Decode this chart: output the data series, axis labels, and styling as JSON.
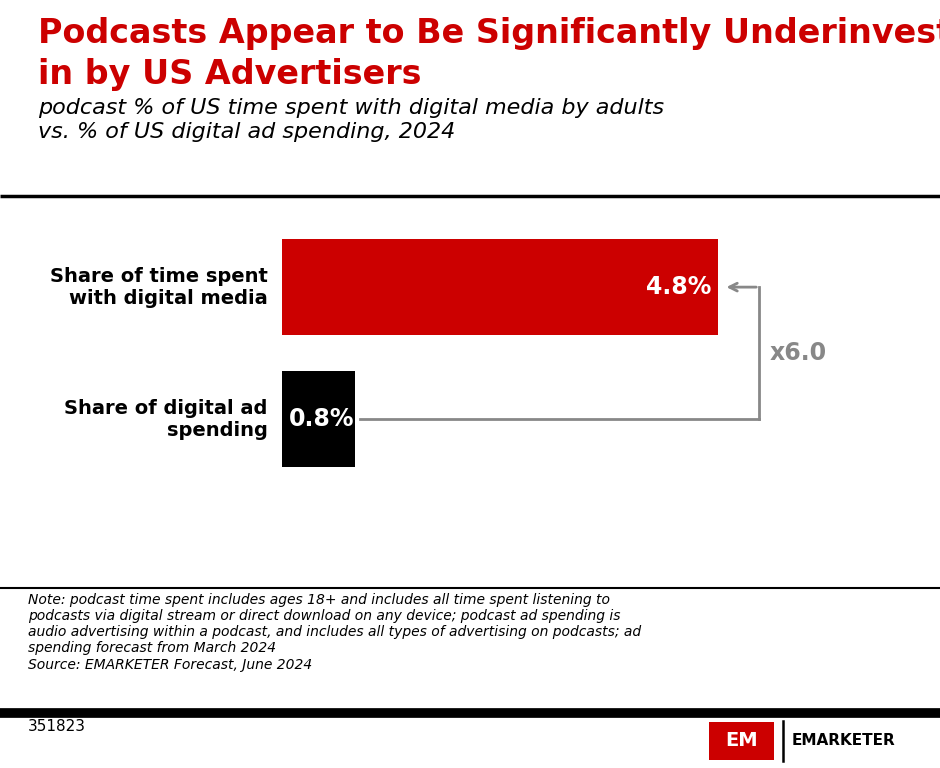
{
  "title_line1": "Podcasts Appear to Be Significantly Underinvested",
  "title_line2": "in by US Advertisers",
  "subtitle": "podcast % of US time spent with digital media by adults\nvs. % of US digital ad spending, 2024",
  "bar1_label": "Share of time spent\nwith digital media",
  "bar2_label": "Share of digital ad\nspending",
  "bar1_value": 4.8,
  "bar2_value": 0.8,
  "bar1_color": "#CC0000",
  "bar2_color": "#000000",
  "bar1_text": "4.8%",
  "bar2_text": "0.8%",
  "multiplier_text": "x6.0",
  "note_text": "Note: podcast time spent includes ages 18+ and includes all time spent listening to\npodcasts via digital stream or direct download on any device; podcast ad spending is\naudio advertising within a podcast, and includes all types of advertising on podcasts; ad\nspending forecast from March 2024\nSource: EMARKETER Forecast, June 2024",
  "footer_id": "351823",
  "title_color": "#CC0000",
  "subtitle_color": "#000000",
  "background_color": "#FFFFFF",
  "arrow_color": "#888888",
  "multiplier_color": "#888888",
  "bar_label_color": "#000000",
  "title_fontsize": 24,
  "subtitle_fontsize": 16,
  "bar_label_fontsize": 14,
  "bar_value_fontsize": 17,
  "multiplier_fontsize": 17,
  "note_fontsize": 10,
  "footer_fontsize": 11
}
